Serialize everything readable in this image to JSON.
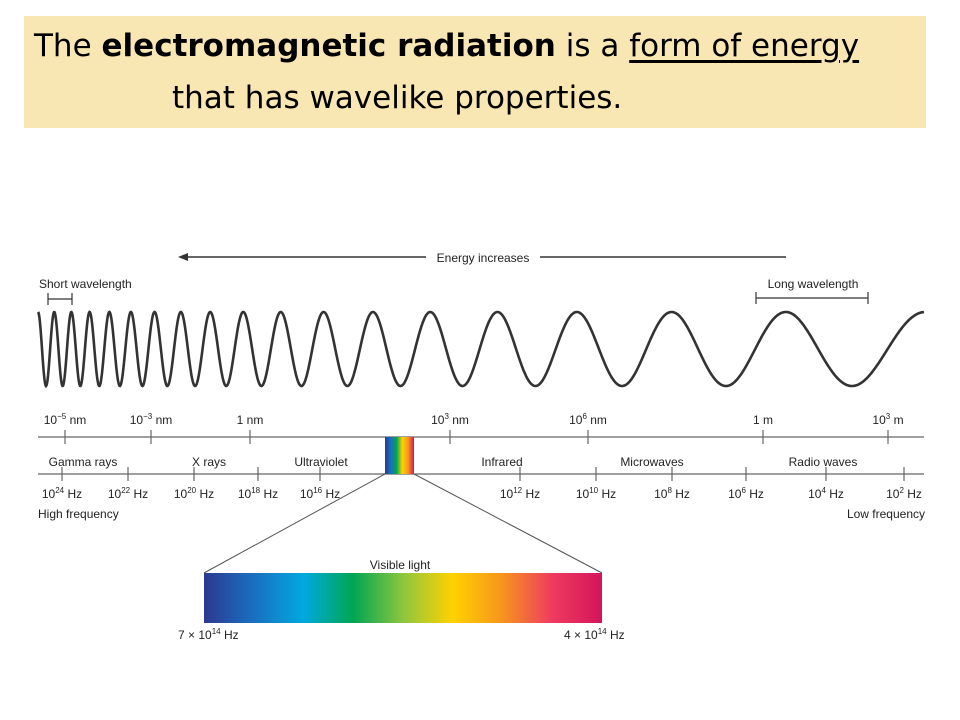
{
  "title": {
    "part1": "The ",
    "bold": "electromagnetic radiation",
    "part2": " is a ",
    "underlined": "form of energy ",
    "line2": "that has wavelike properties."
  },
  "diagram": {
    "energy_label": "Energy increases",
    "short_wavelength": "Short wavelength",
    "long_wavelength": "Long wavelength",
    "wavelength_ticks": [
      {
        "base": "10",
        "exp": "−5",
        "unit": " nm"
      },
      {
        "base": "10",
        "exp": "−3",
        "unit": " nm"
      },
      {
        "base": "",
        "exp": "",
        "unit": "1 nm"
      },
      {
        "base": "10",
        "exp": "3",
        "unit": " nm"
      },
      {
        "base": "10",
        "exp": "6",
        "unit": " nm"
      },
      {
        "base": "",
        "exp": "",
        "unit": "1 m"
      },
      {
        "base": "10",
        "exp": "3",
        "unit": " m"
      }
    ],
    "regions": [
      "Gamma rays",
      "X rays",
      "Ultraviolet",
      "Infrared",
      "Microwaves",
      "Radio waves"
    ],
    "frequency_ticks": [
      {
        "base": "10",
        "exp": "24",
        "unit": " Hz"
      },
      {
        "base": "10",
        "exp": "22",
        "unit": " Hz"
      },
      {
        "base": "10",
        "exp": "20",
        "unit": " Hz"
      },
      {
        "base": "10",
        "exp": "18",
        "unit": " Hz"
      },
      {
        "base": "10",
        "exp": "16",
        "unit": " Hz"
      },
      {
        "base": "10",
        "exp": "12",
        "unit": " Hz"
      },
      {
        "base": "10",
        "exp": "10",
        "unit": " Hz"
      },
      {
        "base": "10",
        "exp": "8",
        "unit": " Hz"
      },
      {
        "base": "10",
        "exp": "6",
        "unit": " Hz"
      },
      {
        "base": "10",
        "exp": "4",
        "unit": " Hz"
      },
      {
        "base": "10",
        "exp": "2",
        "unit": " Hz"
      }
    ],
    "high_frequency": "High frequency",
    "low_frequency": "Low frequency",
    "visible_light": "Visible light",
    "visible_left": {
      "prefix": "7 × 10",
      "exp": "14",
      "unit": " Hz"
    },
    "visible_right": {
      "prefix": "4 × 10",
      "exp": "14",
      "unit": " Hz"
    }
  },
  "colors": {
    "title_background": "#f9e7b3",
    "line": "#333333",
    "spectrum": [
      "#2b3990",
      "#1a6fc0",
      "#00a9e0",
      "#00a651",
      "#8dc63f",
      "#ffd200",
      "#f7941d",
      "#ee3b5f",
      "#d4145a"
    ]
  }
}
